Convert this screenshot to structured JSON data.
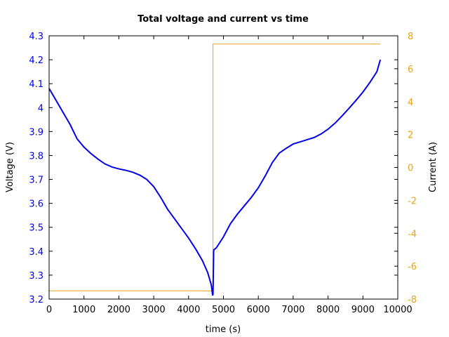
{
  "chart_data": {
    "type": "line",
    "title": "Total voltage and current vs time",
    "xlabel": "time (s)",
    "ylabel_left": "Voltage (V)",
    "ylabel_right": "Current (A)",
    "xlim": [
      0,
      10000
    ],
    "ylim_left": [
      3.2,
      4.3
    ],
    "ylim_right": [
      -8,
      8
    ],
    "x_ticks": [
      0,
      1000,
      2000,
      3000,
      4000,
      5000,
      6000,
      7000,
      8000,
      9000,
      10000
    ],
    "y_ticks_left": [
      "3.2",
      "3.3",
      "3.4",
      "3.5",
      "3.6",
      "3.7",
      "3.8",
      "3.9",
      "4",
      "4.1",
      "4.2",
      "4.3"
    ],
    "y_ticks_right": [
      "-8",
      "-6",
      "-4",
      "-2",
      "0",
      "2",
      "4",
      "6",
      "8"
    ],
    "colors": {
      "voltage": "#0000ee",
      "current": "#e8a317",
      "left_ticks": "#0000ee",
      "right_ticks": "#e8a317"
    },
    "grid": false,
    "series": [
      {
        "axis": "left",
        "points": [
          [
            0,
            4.08
          ],
          [
            200,
            4.03
          ],
          [
            400,
            3.98
          ],
          [
            600,
            3.93
          ],
          [
            800,
            3.87
          ],
          [
            1000,
            3.835
          ],
          [
            1200,
            3.808
          ],
          [
            1400,
            3.785
          ],
          [
            1600,
            3.765
          ],
          [
            1800,
            3.752
          ],
          [
            2000,
            3.744
          ],
          [
            2200,
            3.738
          ],
          [
            2400,
            3.73
          ],
          [
            2600,
            3.718
          ],
          [
            2800,
            3.7
          ],
          [
            3000,
            3.67
          ],
          [
            3200,
            3.625
          ],
          [
            3400,
            3.575
          ],
          [
            3600,
            3.535
          ],
          [
            3800,
            3.495
          ],
          [
            4000,
            3.455
          ],
          [
            4200,
            3.41
          ],
          [
            4400,
            3.36
          ],
          [
            4550,
            3.31
          ],
          [
            4650,
            3.26
          ],
          [
            4690,
            3.215
          ],
          [
            4700,
            3.22
          ],
          [
            4720,
            3.405
          ],
          [
            4800,
            3.415
          ],
          [
            5000,
            3.46
          ],
          [
            5200,
            3.515
          ],
          [
            5400,
            3.555
          ],
          [
            5600,
            3.59
          ],
          [
            5800,
            3.625
          ],
          [
            6000,
            3.665
          ],
          [
            6200,
            3.715
          ],
          [
            6400,
            3.77
          ],
          [
            6600,
            3.81
          ],
          [
            6800,
            3.83
          ],
          [
            7000,
            3.848
          ],
          [
            7200,
            3.857
          ],
          [
            7400,
            3.866
          ],
          [
            7600,
            3.875
          ],
          [
            7800,
            3.89
          ],
          [
            8000,
            3.91
          ],
          [
            8200,
            3.935
          ],
          [
            8400,
            3.965
          ],
          [
            8600,
            3.997
          ],
          [
            8800,
            4.03
          ],
          [
            9000,
            4.065
          ],
          [
            9200,
            4.105
          ],
          [
            9400,
            4.15
          ],
          [
            9500,
            4.2
          ]
        ]
      },
      {
        "axis": "right",
        "points": [
          [
            0,
            -7.5
          ],
          [
            4700,
            -7.5
          ],
          [
            4700,
            7.5
          ],
          [
            9500,
            7.5
          ]
        ]
      }
    ]
  }
}
